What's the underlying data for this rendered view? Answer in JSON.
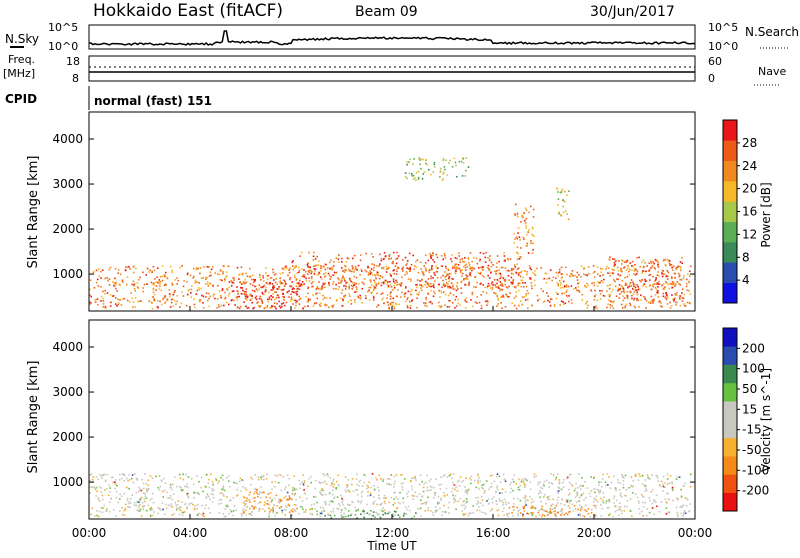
{
  "header": {
    "station": "Hokkaido East (fitACF)",
    "beam": "Beam 09",
    "date": "30/Jun/2017"
  },
  "params": {
    "nsky_label": "N.Sky",
    "nsearch_label": "N.Search",
    "freq_label_1": "Freq.",
    "freq_label_2": "[MHz]",
    "nave_label": "Nave",
    "cpid_label": "CPID",
    "cpid_value": "normal (fast) 151",
    "noise_left_ticks": [
      "10^5",
      "10^0"
    ],
    "noise_right_ticks": [
      "10^5",
      "10^0"
    ],
    "freq_ticks": [
      "18",
      "8"
    ],
    "nave_ticks": [
      "60",
      "0"
    ]
  },
  "chart_data": [
    {
      "type": "heatmap",
      "title": "",
      "xlabel": "",
      "ylabel": "Slant Range [km]",
      "x_ticks": [
        "00:00",
        "04:00",
        "08:00",
        "12:00",
        "16:00",
        "20:00",
        "00:00"
      ],
      "xlim_hours": [
        0,
        24
      ],
      "y_ticks": [
        1000,
        2000,
        3000,
        4000
      ],
      "ylim_km": [
        180,
        4600
      ],
      "colorbar": {
        "label": "Power [dB]",
        "ticks": [
          4,
          8,
          12,
          16,
          20,
          24,
          28
        ],
        "range": [
          0,
          32
        ],
        "colors": [
          "#1010e0",
          "#2a4cb0",
          "#3a8a5a",
          "#5cae55",
          "#a8c84a",
          "#f5b82a",
          "#f08a20",
          "#ee5a18",
          "#e81818"
        ]
      },
      "regions": [
        {
          "t0": 0.0,
          "t1": 23.8,
          "r0": 250,
          "r1": 1200,
          "level": 24,
          "note": "near-range scatter"
        },
        {
          "t0": 5.5,
          "t1": 8.5,
          "r0": 250,
          "r1": 900,
          "level": 30
        },
        {
          "t0": 8.0,
          "t1": 17.0,
          "r0": 700,
          "r1": 1500,
          "level": 26
        },
        {
          "t0": 20.5,
          "t1": 23.5,
          "r0": 400,
          "r1": 1400,
          "level": 26
        },
        {
          "t0": 16.8,
          "t1": 17.6,
          "r0": 1300,
          "r1": 2600,
          "level": 24
        },
        {
          "t0": 18.5,
          "t1": 19.0,
          "r0": 2200,
          "r1": 3000,
          "level": 18
        },
        {
          "t0": 12.5,
          "t1": 15.0,
          "r0": 3100,
          "r1": 3600,
          "level": 14
        }
      ]
    },
    {
      "type": "heatmap",
      "title": "",
      "xlabel": "Time UT",
      "ylabel": "Slant Range [km]",
      "x_ticks": [
        "00:00",
        "04:00",
        "08:00",
        "12:00",
        "16:00",
        "20:00",
        "00:00"
      ],
      "xlim_hours": [
        0,
        24
      ],
      "y_ticks": [
        1000,
        2000,
        3000,
        4000
      ],
      "ylim_km": [
        180,
        4600
      ],
      "colorbar": {
        "label": "Velocity [m s^-1]",
        "ticks": [
          200,
          100,
          50,
          15,
          -15,
          -50,
          -100,
          -200
        ],
        "range": [
          -250,
          250
        ],
        "colors": [
          "#e81010",
          "#f05010",
          "#f58a18",
          "#f8b030",
          "#c8c8c0",
          "#c8c8c0",
          "#68c040",
          "#3a8a50",
          "#2a4cb0",
          "#1010c0"
        ]
      },
      "regions": [
        {
          "t0": 0.0,
          "t1": 23.8,
          "r0": 250,
          "r1": 1200,
          "velocity": 0,
          "note": "ground scatter grey"
        },
        {
          "t0": 6.0,
          "t1": 8.3,
          "r0": 300,
          "r1": 800,
          "velocity": -60
        },
        {
          "t0": 16.5,
          "t1": 20.0,
          "r0": 250,
          "r1": 500,
          "velocity": -80
        },
        {
          "t0": 9.0,
          "t1": 13.0,
          "r0": 200,
          "r1": 400,
          "velocity": 30
        }
      ]
    }
  ]
}
